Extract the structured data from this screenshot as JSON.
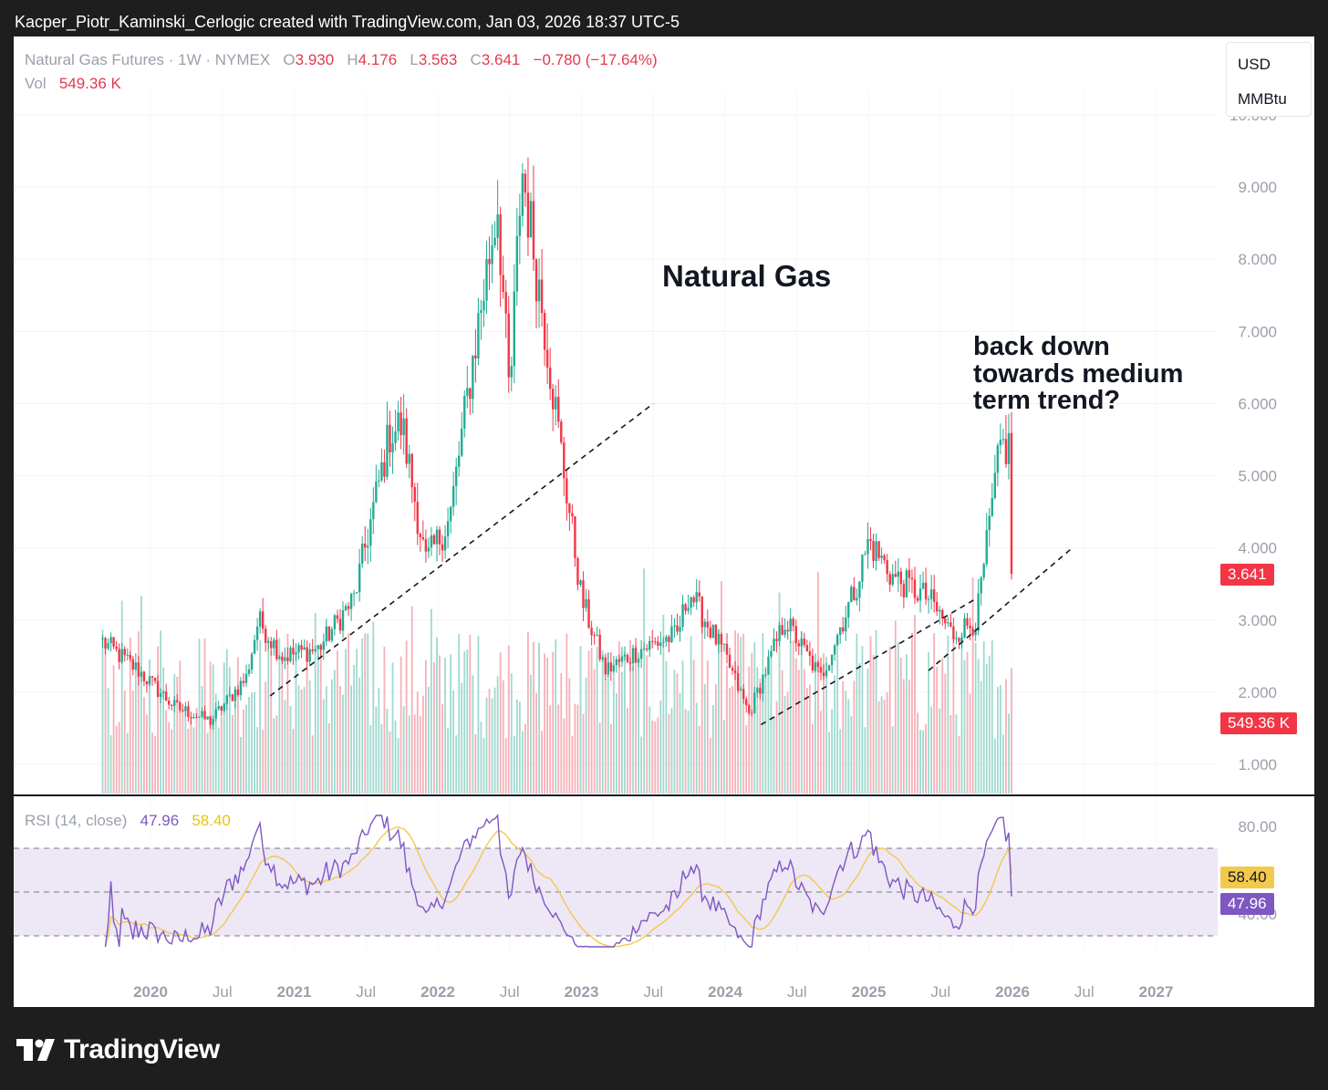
{
  "header": {
    "text": "Kacper_Piotr_Kaminski_Cerlogic created with TradingView.com, Jan 03, 2026 18:37 UTC-5"
  },
  "legend": {
    "symbol": "Natural Gas Futures · 1W · NYMEX",
    "o_label": "O",
    "o_value": "3.930",
    "h_label": "H",
    "h_value": "4.176",
    "l_label": "L",
    "l_value": "3.563",
    "c_label": "C",
    "c_value": "3.641",
    "change": "−0.780 (−17.64%)",
    "vol_label": "Vol",
    "vol_value": "549.36 K"
  },
  "units": {
    "currency": "USD",
    "unit": "MMBtu"
  },
  "price_tag": "3.641",
  "volume_tag": "549.36 K",
  "rsi": {
    "label": "RSI (14, close)",
    "value": "47.96",
    "ma_value": "58.40",
    "value_tag": "47.96",
    "ma_tag": "58.40"
  },
  "annotations": {
    "title": "Natural Gas",
    "note_line1": "back down",
    "note_line2": "towards medium",
    "note_line3": "term trend?"
  },
  "footer": {
    "brand": "TradingView"
  },
  "colors": {
    "up": "#22ab94",
    "down": "#f23645",
    "rsi": "#7e57c2",
    "rsi_ma": "#f2c94c",
    "rsi_band": "#ede7f6"
  },
  "chart_data": [
    {
      "type": "candlestick",
      "title": "Natural Gas Futures · 1W · NYMEX",
      "ylim": [
        1.0,
        10.0
      ],
      "y_ticks": [
        "10.000",
        "9.000",
        "8.000",
        "7.000",
        "6.000",
        "5.000",
        "4.000",
        "3.000",
        "2.000",
        "1.000"
      ],
      "x_ticks": [
        "2020",
        "Jul",
        "2021",
        "Jul",
        "2022",
        "Jul",
        "2023",
        "Jul",
        "2024",
        "Jul",
        "2025",
        "Jul",
        "2026",
        "Jul",
        "2027"
      ],
      "series": [
        {
          "name": "Price (weekly close, approx.)",
          "x": [
            "2019-09",
            "2019-12",
            "2020-03",
            "2020-06",
            "2020-09",
            "2020-10",
            "2020-12",
            "2021-03",
            "2021-06",
            "2021-09",
            "2021-10",
            "2021-12",
            "2022-02",
            "2022-04",
            "2022-06",
            "2022-07",
            "2022-08",
            "2022-10",
            "2022-11",
            "2023-01",
            "2023-03",
            "2023-06",
            "2023-09",
            "2023-10",
            "2024-01",
            "2024-03",
            "2024-06",
            "2024-09",
            "2024-12",
            "2025-01",
            "2025-03",
            "2025-06",
            "2025-08",
            "2025-10",
            "2025-12"
          ],
          "values": [
            2.7,
            2.3,
            1.8,
            1.6,
            2.2,
            3.0,
            2.5,
            2.6,
            3.3,
            5.6,
            5.7,
            3.8,
            4.4,
            6.7,
            8.8,
            6.0,
            9.3,
            7.0,
            5.7,
            3.3,
            2.3,
            2.6,
            2.8,
            3.4,
            2.5,
            1.7,
            3.0,
            2.2,
            3.5,
            4.1,
            3.6,
            3.3,
            2.8,
            3.0,
            5.4
          ]
        },
        {
          "name": "Close",
          "last": 3.641
        },
        {
          "name": "Volume",
          "last": "549.36 K"
        }
      ],
      "trendlines": [
        {
          "from": [
            "2020-11",
            1.95
          ],
          "to": [
            "2023-07",
            6.0
          ]
        },
        {
          "from": [
            "2024-04",
            1.55
          ],
          "to": [
            "2025-10",
            3.3
          ]
        },
        {
          "from": [
            "2025-06",
            2.3
          ],
          "to": [
            "2026-06",
            4.0
          ]
        }
      ]
    },
    {
      "type": "line",
      "title": "RSI (14, close)",
      "ylim": [
        20,
        90
      ],
      "y_ticks": [
        "80.00",
        "40.00"
      ],
      "bands": [
        70,
        50,
        30
      ],
      "series": [
        {
          "name": "RSI",
          "last": 47.96
        },
        {
          "name": "RSI MA",
          "last": 58.4
        }
      ]
    }
  ]
}
